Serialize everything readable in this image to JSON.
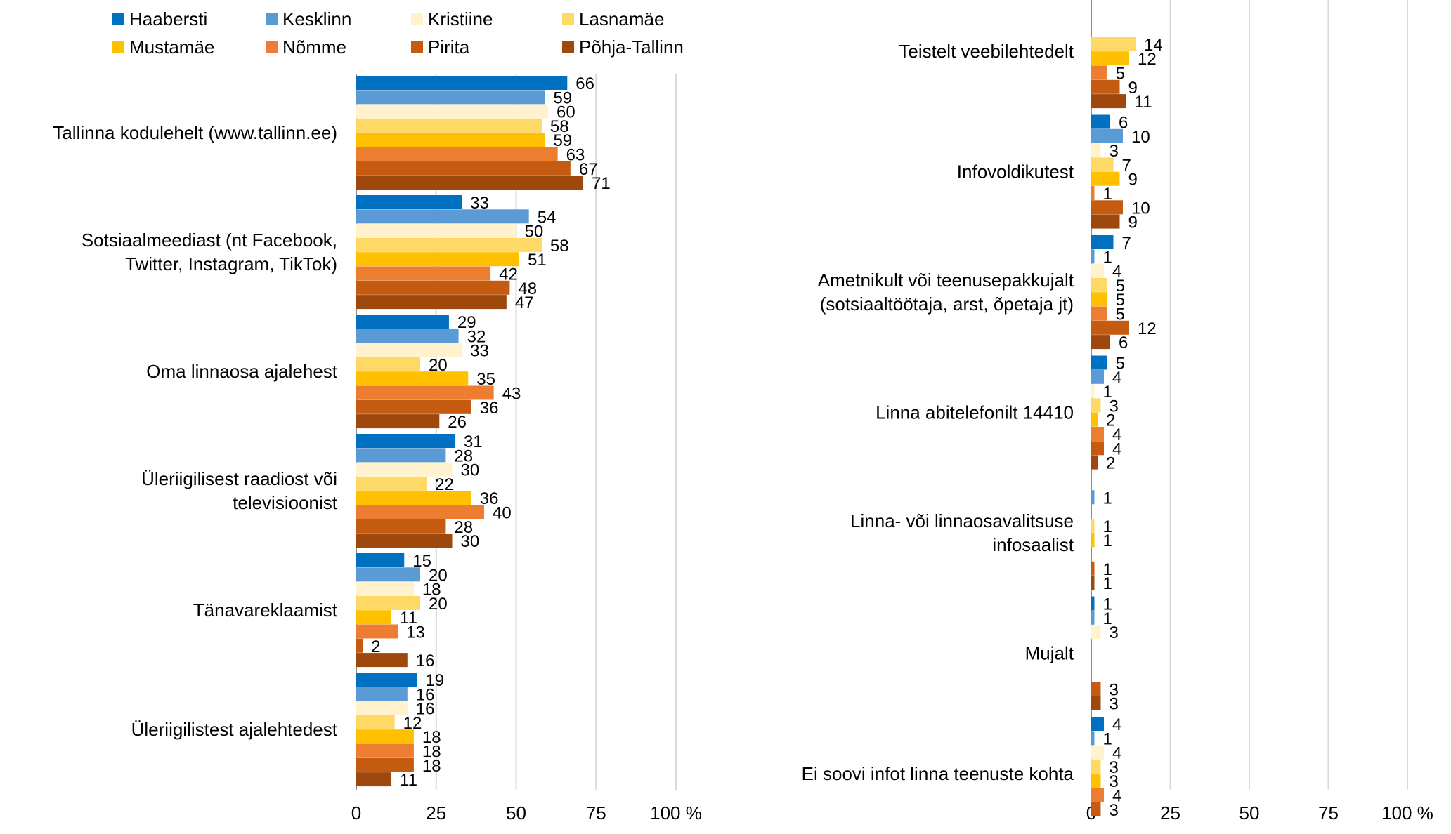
{
  "chart_data": {
    "type": "bar",
    "orientation": "horizontal",
    "grouped": true,
    "grid": "vertical",
    "legend_position": "top-left",
    "axis": {
      "ticks": [
        "0",
        "25",
        "50",
        "75",
        "100 %"
      ],
      "range": [
        0,
        100
      ]
    },
    "series": [
      {
        "name": "Haabersti",
        "color": "#0070C0"
      },
      {
        "name": "Kesklinn",
        "color": "#5B9BD5"
      },
      {
        "name": "Kristiine",
        "color": "#FFF2CC"
      },
      {
        "name": "Lasnamäe",
        "color": "#FFD966"
      },
      {
        "name": "Mustamäe",
        "color": "#FFC000"
      },
      {
        "name": "Nõmme",
        "color": "#ED7D31"
      },
      {
        "name": "Pirita",
        "color": "#C55A11"
      },
      {
        "name": "Põhja-Tallinn",
        "color": "#9E480E"
      }
    ],
    "panels": [
      {
        "id": "left",
        "categories": [
          {
            "label": [
              "Tallinna kodulehelt (www.tallinn.ee)"
            ],
            "values": [
              66,
              59,
              60,
              58,
              59,
              63,
              67,
              71
            ]
          },
          {
            "label": [
              "Sotsiaalmeediast (nt Facebook,",
              "Twitter, Instagram, TikTok)"
            ],
            "values": [
              33,
              54,
              50,
              58,
              51,
              42,
              48,
              47
            ]
          },
          {
            "label": [
              "Oma linnaosa ajalehest"
            ],
            "values": [
              29,
              32,
              33,
              20,
              35,
              43,
              36,
              26
            ]
          },
          {
            "label": [
              "Üleriigilisest raadiost või",
              "televisioonist"
            ],
            "values": [
              31,
              28,
              30,
              22,
              36,
              40,
              28,
              30
            ]
          },
          {
            "label": [
              "Tänavareklaamist"
            ],
            "values": [
              15,
              20,
              18,
              20,
              11,
              13,
              2,
              16
            ]
          },
          {
            "label": [
              "Üleriigilistest ajalehtedest"
            ],
            "values": [
              19,
              16,
              16,
              12,
              18,
              18,
              18,
              11
            ]
          }
        ]
      },
      {
        "id": "right",
        "categories": [
          {
            "label": [
              "Teistelt veebilehtedelt"
            ],
            "values": [
              null,
              null,
              null,
              14,
              12,
              5,
              9,
              11
            ]
          },
          {
            "label": [
              "Infovoldikutest"
            ],
            "values": [
              6,
              10,
              3,
              7,
              9,
              1,
              10,
              9
            ]
          },
          {
            "label": [
              "Ametnikult või teenusepakkujalt",
              "(sotsiaaltöötaja, arst, õpetaja jt)"
            ],
            "values": [
              7,
              1,
              4,
              5,
              5,
              5,
              12,
              6
            ]
          },
          {
            "label": [
              "Linna abitelefonilt 14410"
            ],
            "values": [
              5,
              4,
              1,
              3,
              2,
              4,
              4,
              2
            ]
          },
          {
            "label": [
              "Linna- või linnaosavalitsuse",
              "infosaalist"
            ],
            "values": [
              0,
              1,
              0,
              1,
              1,
              0,
              1,
              1
            ]
          },
          {
            "label": [
              "Mujalt"
            ],
            "values": [
              1,
              1,
              3,
              0,
              0,
              0,
              3,
              3
            ]
          },
          {
            "label": [
              "Ei soovi infot linna teenuste kohta"
            ],
            "values": [
              4,
              1,
              4,
              3,
              3,
              4,
              3,
              null
            ]
          }
        ]
      }
    ]
  }
}
